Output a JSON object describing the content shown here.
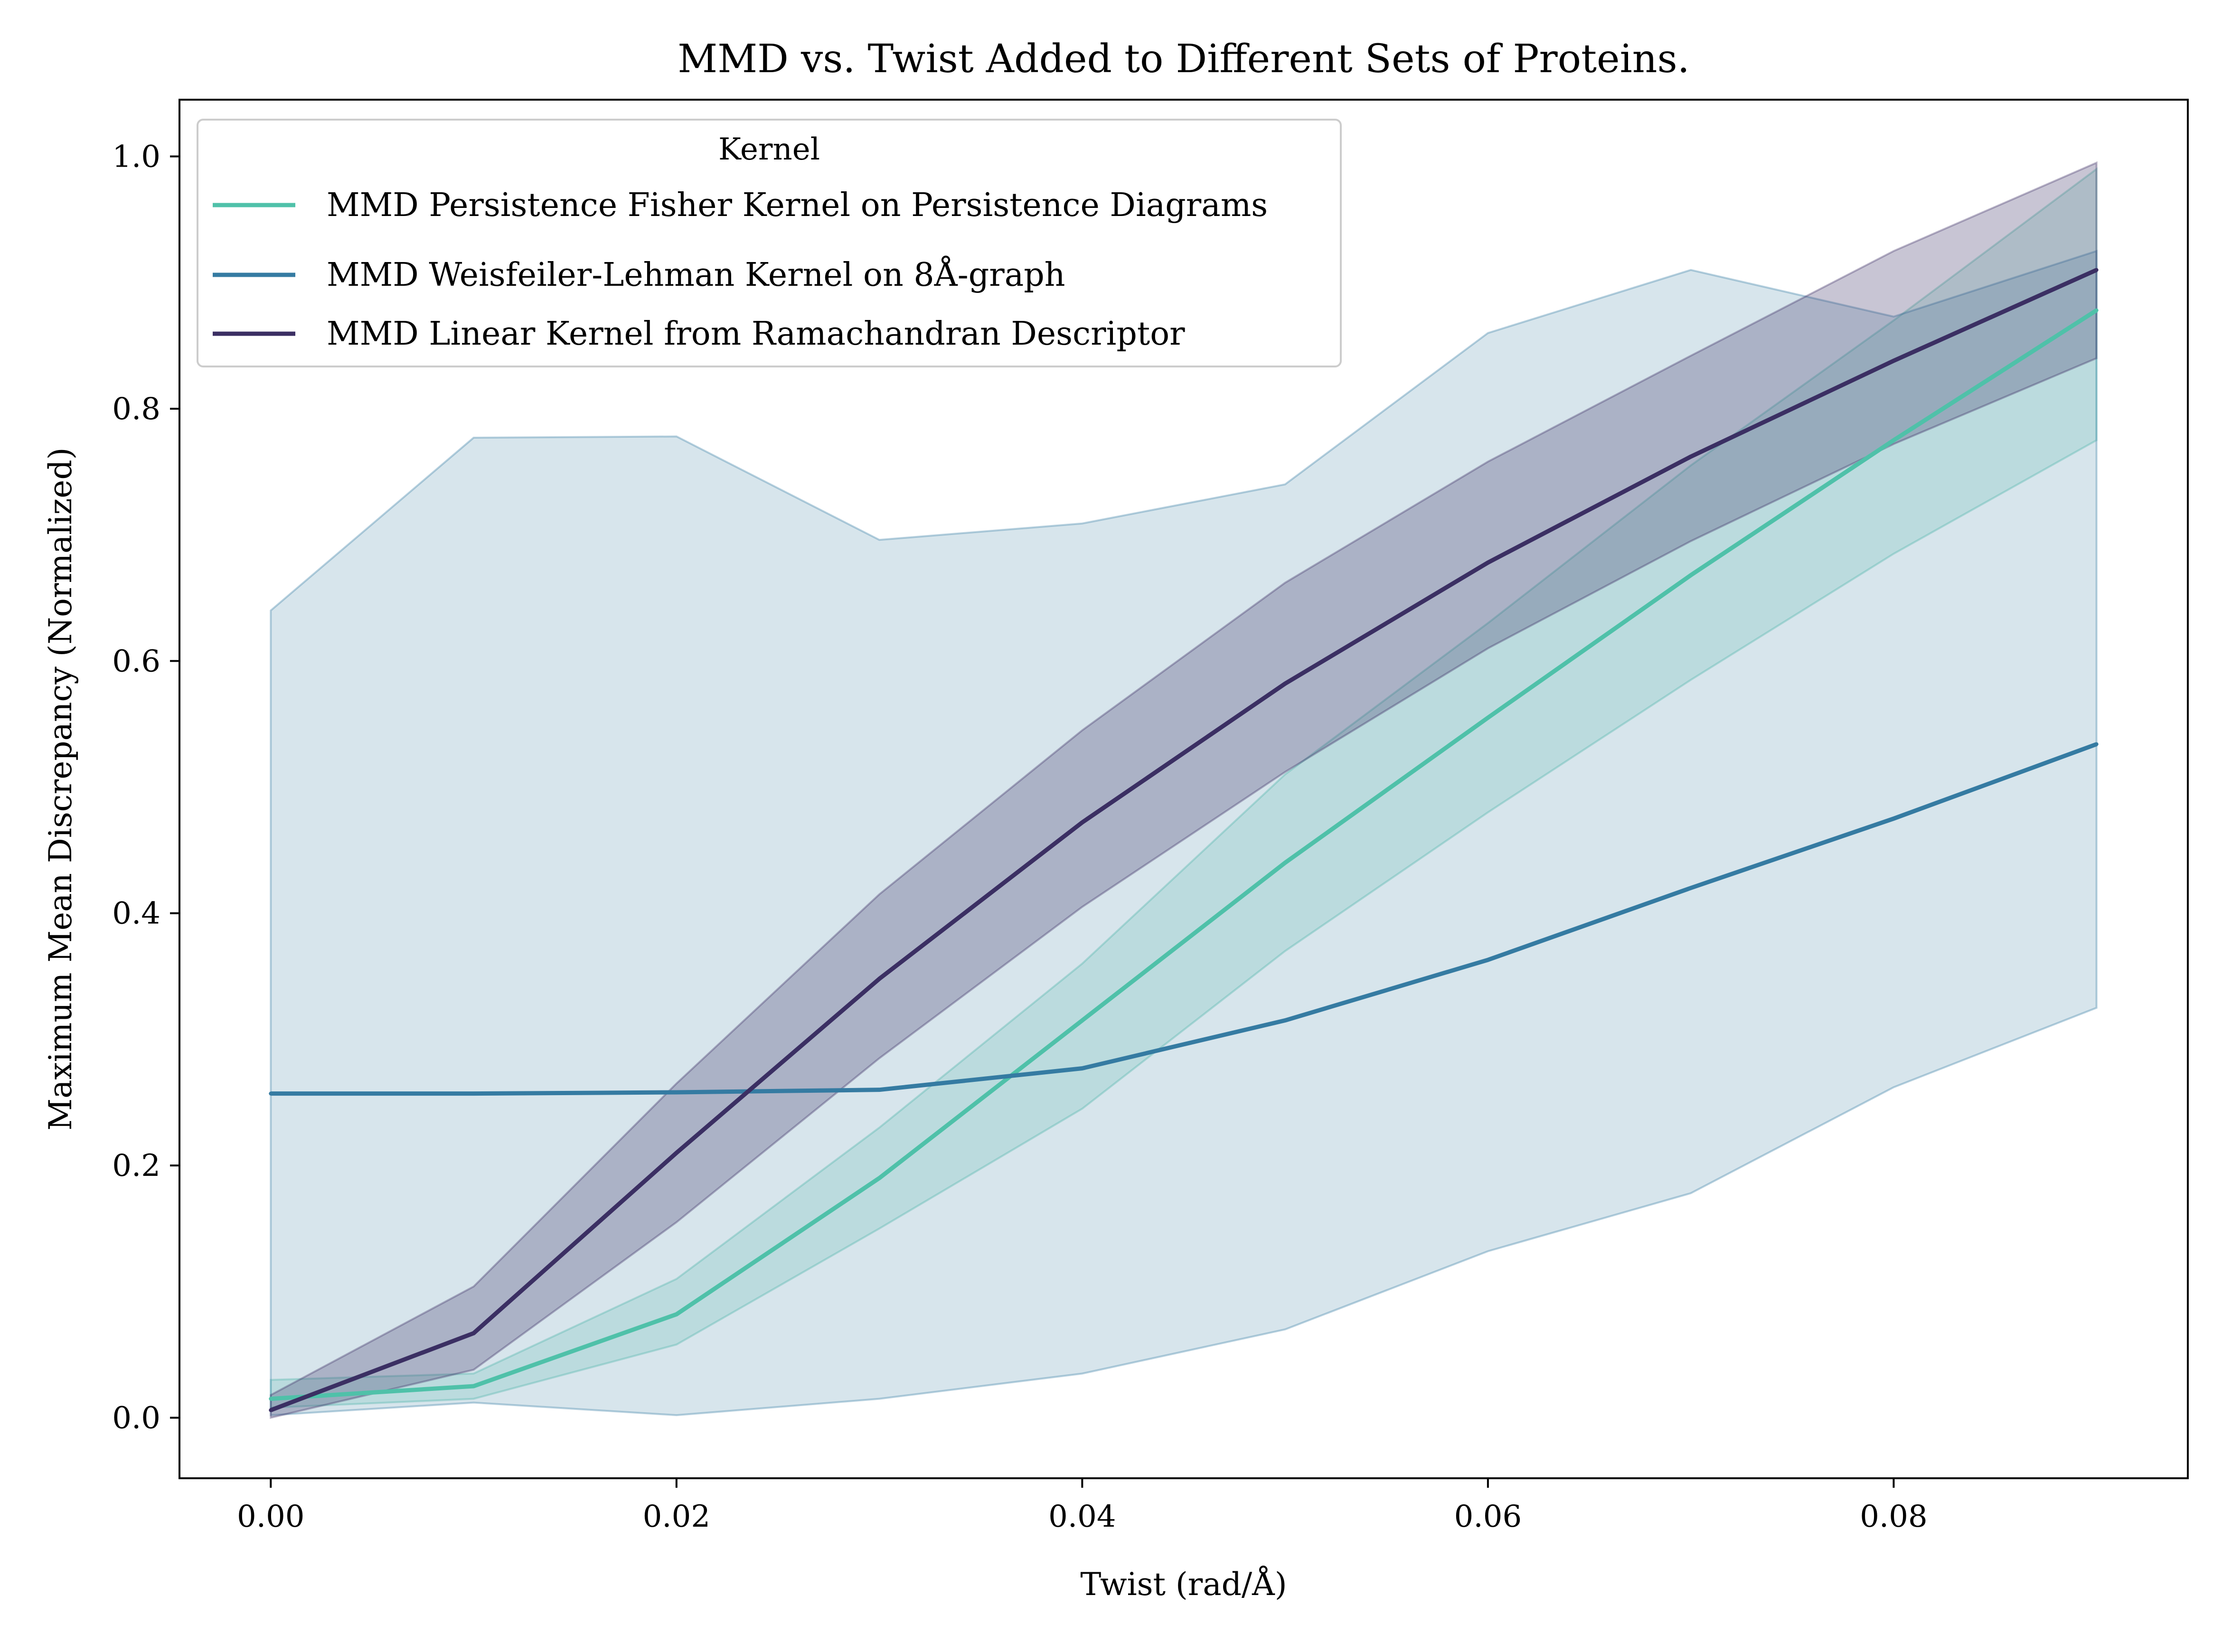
{
  "chart_data": {
    "type": "line",
    "title": "MMD vs. Twist Added to Different Sets of Proteins.",
    "xlabel": "Twist (rad/Å)",
    "ylabel": "Maximum Mean Discrepancy (Normalized)",
    "xlim": [
      -0.0045,
      0.0945
    ],
    "ylim": [
      -0.048,
      1.045
    ],
    "xticks": [
      0.0,
      0.02,
      0.04,
      0.06,
      0.08
    ],
    "xtick_labels": [
      "0.00",
      "0.02",
      "0.04",
      "0.06",
      "0.08"
    ],
    "yticks": [
      0.0,
      0.2,
      0.4,
      0.6,
      0.8,
      1.0
    ],
    "ytick_labels": [
      "0.0",
      "0.2",
      "0.4",
      "0.6",
      "0.8",
      "1.0"
    ],
    "grid": false,
    "legend": {
      "title": "Kernel",
      "placement": "top-left"
    },
    "x": [
      0.0,
      0.01,
      0.02,
      0.03,
      0.04,
      0.05,
      0.06,
      0.07,
      0.08,
      0.09
    ],
    "series": [
      {
        "name": "MMD Persistence Fisher Kernel on Persistence Diagrams",
        "color": "#4fc1a9",
        "values": [
          0.015,
          0.025,
          0.082,
          0.19,
          0.315,
          0.44,
          0.555,
          0.668,
          0.775,
          0.878
        ],
        "lower": [
          0.008,
          0.015,
          0.058,
          0.15,
          0.245,
          0.37,
          0.48,
          0.585,
          0.685,
          0.775
        ],
        "upper": [
          0.03,
          0.035,
          0.11,
          0.23,
          0.36,
          0.51,
          0.63,
          0.755,
          0.87,
          0.99
        ]
      },
      {
        "name": "MMD Weisfeiler-Lehman Kernel on 8Å-graph",
        "color": "#357ba2",
        "values": [
          0.257,
          0.257,
          0.258,
          0.26,
          0.277,
          0.315,
          0.363,
          0.42,
          0.475,
          0.534
        ],
        "lower": [
          0.002,
          0.012,
          0.002,
          0.015,
          0.035,
          0.07,
          0.132,
          0.178,
          0.262,
          0.325
        ],
        "upper": [
          0.64,
          0.777,
          0.778,
          0.696,
          0.709,
          0.74,
          0.86,
          0.91,
          0.873,
          0.925
        ]
      },
      {
        "name": "MMD Linear Kernel from Ramachandran Descriptor",
        "color": "#3b2f63",
        "values": [
          0.006,
          0.067,
          0.21,
          0.348,
          0.472,
          0.582,
          0.678,
          0.762,
          0.838,
          0.91
        ],
        "lower": [
          0.0,
          0.038,
          0.155,
          0.285,
          0.405,
          0.512,
          0.61,
          0.695,
          0.772,
          0.84
        ],
        "upper": [
          0.018,
          0.104,
          0.265,
          0.415,
          0.545,
          0.662,
          0.758,
          0.842,
          0.925,
          0.995
        ]
      }
    ]
  }
}
